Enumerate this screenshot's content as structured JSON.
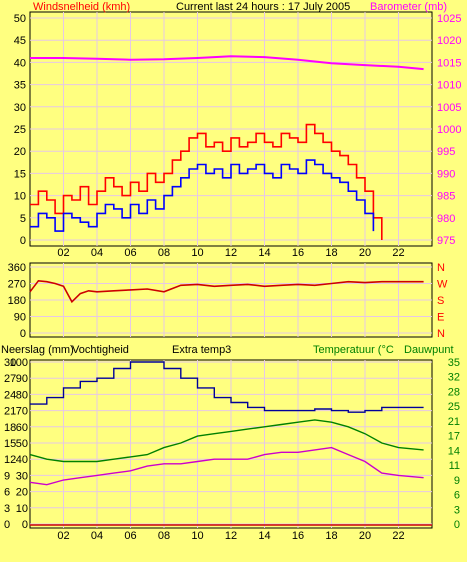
{
  "title": "Current last 24 hours : 17 July 2005",
  "colors": {
    "background": "#ffff80",
    "plot_bg": "#ffff80",
    "grid": "#e6c8e6",
    "axis": "#000000",
    "wind_max": "#ff0000",
    "wind_avg": "#0000ff",
    "barometer": "#ff00ff",
    "direction": "#cc0000",
    "humidity": "#00009a",
    "temperature": "#008000",
    "dewpoint": "#cc00cc",
    "rain": "#cc0000",
    "label_red": "#ff0000",
    "label_magenta": "#ff00ff",
    "label_green": "#008000"
  },
  "chart_data": [
    {
      "id": "wind-barometer",
      "type": "line",
      "title": "Current last 24 hours : 17 July 2005",
      "left_label": "Windsnelheid (kmh)",
      "right_label": "Barometer (mb)",
      "x_ticks": [
        "02",
        "04",
        "06",
        "08",
        "10",
        "12",
        "14",
        "16",
        "18",
        "20",
        "22"
      ],
      "xlim": [
        0,
        24
      ],
      "ylim_left": [
        0,
        50
      ],
      "ylim_right": [
        975,
        1025
      ],
      "y_ticks_left": [
        "0",
        "5",
        "10",
        "15",
        "20",
        "25",
        "30",
        "35",
        "40",
        "45",
        "50"
      ],
      "y_ticks_right": [
        "975",
        "980",
        "985",
        "990",
        "995",
        "1000",
        "1005",
        "1010",
        "1015",
        "1020",
        "1025"
      ],
      "barometer": {
        "x": [
          0,
          2,
          4,
          6,
          8,
          10,
          12,
          14,
          16,
          18,
          20,
          22,
          23.5
        ],
        "y": [
          1016,
          1016,
          1015.8,
          1015.6,
          1015.7,
          1016,
          1016.4,
          1016.2,
          1015.6,
          1014.8,
          1014.4,
          1014,
          1013.5
        ]
      },
      "wind_max": {
        "x": [
          0,
          0.5,
          1,
          1.5,
          2,
          2.5,
          3,
          3.5,
          4,
          4.5,
          5,
          5.5,
          6,
          6.5,
          7,
          7.5,
          8,
          8.5,
          9,
          9.5,
          10,
          10.5,
          11,
          11.5,
          12,
          12.5,
          13,
          13.5,
          14,
          14.5,
          15,
          15.5,
          16,
          16.5,
          17,
          17.5,
          18,
          18.5,
          19,
          19.5,
          20,
          20.5,
          21
        ],
        "y": [
          8,
          11,
          9,
          6,
          10,
          9,
          12,
          8,
          11,
          14,
          12,
          10,
          13,
          11,
          15,
          13,
          15,
          18,
          20,
          23,
          24,
          21,
          22,
          20,
          23,
          21,
          22,
          24,
          22,
          21,
          24,
          23,
          22,
          26,
          24,
          22,
          20,
          19,
          17,
          14,
          11,
          5,
          0
        ]
      },
      "wind_avg": {
        "x": [
          0,
          0.5,
          1,
          1.5,
          2,
          2.5,
          3,
          3.5,
          4,
          4.5,
          5,
          5.5,
          6,
          6.5,
          7,
          7.5,
          8,
          8.5,
          9,
          9.5,
          10,
          10.5,
          11,
          11.5,
          12,
          12.5,
          13,
          13.5,
          14,
          14.5,
          15,
          15.5,
          16,
          16.5,
          17,
          17.5,
          18,
          18.5,
          19,
          19.5,
          20,
          20.5
        ],
        "y": [
          3,
          6,
          5,
          2,
          6,
          5,
          4,
          3,
          6,
          8,
          7,
          5,
          8,
          6,
          9,
          7,
          10,
          12,
          14,
          16,
          17,
          15,
          16,
          14,
          17,
          15,
          16,
          17,
          15,
          14,
          17,
          16,
          15,
          18,
          17,
          15,
          14,
          13,
          11,
          9,
          6,
          2
        ]
      }
    },
    {
      "id": "wind-direction",
      "type": "line",
      "y_ticks_left": [
        "0",
        "90",
        "180",
        "270",
        "360"
      ],
      "y_ticks_right": [
        "N",
        "E",
        "S",
        "W",
        "N"
      ],
      "ylim": [
        0,
        360
      ],
      "xlim": [
        0,
        24
      ],
      "direction": {
        "x": [
          0,
          0.5,
          1,
          1.5,
          2,
          2.5,
          3,
          3.5,
          4,
          5,
          6,
          7,
          8,
          9,
          10,
          11,
          12,
          13,
          14,
          15,
          16,
          17,
          18,
          19,
          20,
          21,
          22,
          23.5
        ],
        "y": [
          225,
          285,
          280,
          270,
          255,
          170,
          215,
          230,
          225,
          230,
          235,
          240,
          225,
          260,
          265,
          255,
          260,
          265,
          255,
          260,
          265,
          260,
          270,
          280,
          275,
          280,
          280,
          280
        ]
      }
    },
    {
      "id": "rain-humidity-temperature",
      "type": "line",
      "labels": {
        "rain": "Neerslag (mm)",
        "humidity": "Vochtigheid",
        "extra": "Extra temp3",
        "temperature": "Temperatuur (°C",
        "dewpoint": "Dauwpunt"
      },
      "x_ticks": [
        "02",
        "04",
        "06",
        "08",
        "10",
        "12",
        "14",
        "16",
        "18",
        "20",
        "22"
      ],
      "xlim": [
        0,
        24
      ],
      "y_ticks_rain": [
        "0",
        "3",
        "6",
        "9",
        "12",
        "15",
        "18",
        "21",
        "24",
        "27",
        "30"
      ],
      "y_ticks_humidity": [
        "0",
        "10",
        "20",
        "30",
        "40",
        "50",
        "60",
        "70",
        "80",
        "90",
        "100"
      ],
      "y_ticks_temperature": [
        "0",
        "3",
        "6",
        "9",
        "11",
        "14",
        "17",
        "21",
        "25",
        "28",
        "32",
        "35"
      ],
      "humidity_ylim": [
        0,
        100
      ],
      "temperature_ylim": [
        0,
        35
      ],
      "humidity": {
        "x": [
          0,
          1,
          2,
          3,
          4,
          5,
          6,
          7,
          8,
          9,
          10,
          11,
          12,
          13,
          14,
          15,
          16,
          17,
          18,
          19,
          20,
          21,
          22,
          23.5
        ],
        "y": [
          74,
          78,
          84,
          88,
          90,
          96,
          100,
          100,
          96,
          90,
          84,
          78,
          75,
          72,
          70,
          70,
          70,
          71,
          70,
          69,
          70,
          72,
          72,
          72
        ]
      },
      "temperature": {
        "x": [
          0,
          1,
          2,
          3,
          4,
          5,
          6,
          7,
          8,
          9,
          10,
          11,
          12,
          13,
          14,
          15,
          16,
          17,
          18,
          19,
          20,
          21,
          22,
          23.5
        ],
        "y": [
          15,
          14,
          13.5,
          13.5,
          13.5,
          14,
          14.5,
          15,
          16.5,
          17.5,
          19,
          19.5,
          20,
          20.5,
          21,
          21.5,
          22,
          22.5,
          22,
          21,
          19.5,
          17.5,
          16.5,
          16
        ]
      },
      "dewpoint": {
        "x": [
          0,
          1,
          2,
          3,
          4,
          5,
          6,
          7,
          8,
          9,
          10,
          11,
          12,
          13,
          14,
          15,
          16,
          17,
          18,
          19,
          20,
          21,
          22,
          23.5
        ],
        "y": [
          9,
          8.5,
          9.5,
          10,
          10.5,
          11,
          11.5,
          12.5,
          13,
          13,
          13.5,
          14,
          14,
          14,
          15,
          15.5,
          15.5,
          16,
          16.5,
          15,
          13.5,
          11,
          10.5,
          10
        ]
      },
      "rain": {
        "x": [
          0,
          24
        ],
        "y": [
          0,
          0
        ]
      }
    }
  ]
}
